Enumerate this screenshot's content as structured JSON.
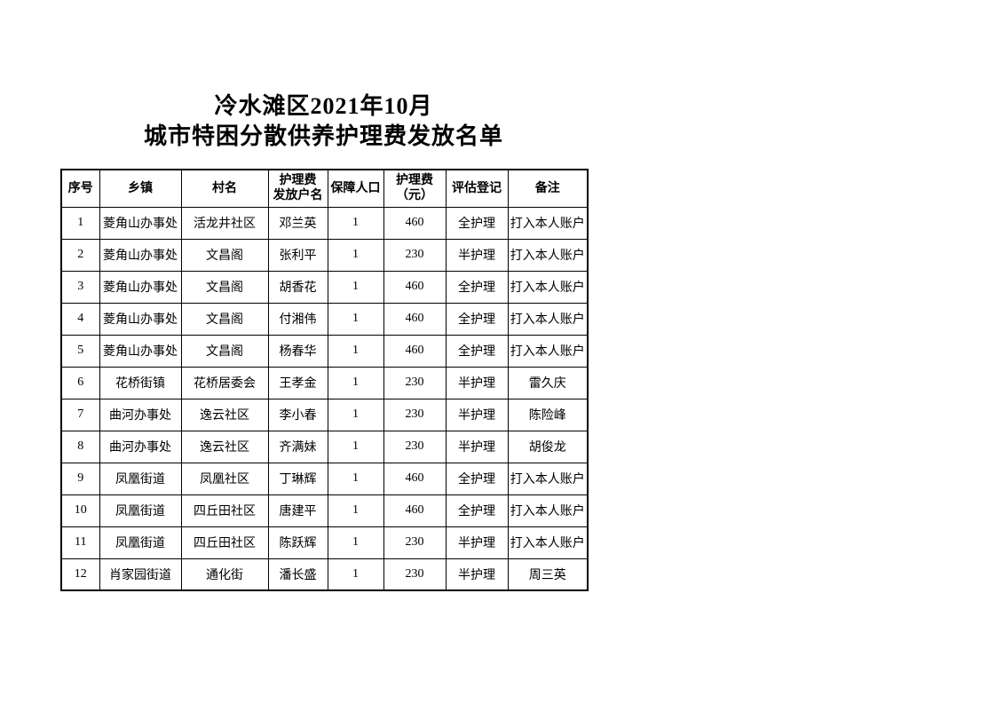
{
  "page": {
    "title_line1": "冷水滩区2021年10月",
    "title_line2": "城市特困分散供养护理费发放名单"
  },
  "table": {
    "headers": [
      "序号",
      "乡镇",
      "村名",
      "护理费\n发放户名",
      "保障人口",
      "护理费\n（元）",
      "评估登记",
      "备注"
    ],
    "column_keys": [
      "index",
      "township",
      "village",
      "payee",
      "population",
      "fee",
      "assessment",
      "remark"
    ],
    "rows": [
      [
        "1",
        "菱角山办事处",
        "活龙井社区",
        "邓兰英",
        "1",
        "460",
        "全护理",
        "打入本人账户"
      ],
      [
        "2",
        "菱角山办事处",
        "文昌阁",
        "张利平",
        "1",
        "230",
        "半护理",
        "打入本人账户"
      ],
      [
        "3",
        "菱角山办事处",
        "文昌阁",
        "胡香花",
        "1",
        "460",
        "全护理",
        "打入本人账户"
      ],
      [
        "4",
        "菱角山办事处",
        "文昌阁",
        "付湘伟",
        "1",
        "460",
        "全护理",
        "打入本人账户"
      ],
      [
        "5",
        "菱角山办事处",
        "文昌阁",
        "杨春华",
        "1",
        "460",
        "全护理",
        "打入本人账户"
      ],
      [
        "6",
        "花桥街镇",
        "花桥居委会",
        "王孝金",
        "1",
        "230",
        "半护理",
        "雷久庆"
      ],
      [
        "7",
        "曲河办事处",
        "逸云社区",
        "李小春",
        "1",
        "230",
        "半护理",
        "陈险峰"
      ],
      [
        "8",
        "曲河办事处",
        "逸云社区",
        "齐满妹",
        "1",
        "230",
        "半护理",
        "胡俊龙"
      ],
      [
        "9",
        "凤凰街道",
        "凤凰社区",
        "丁琳辉",
        "1",
        "460",
        "全护理",
        "打入本人账户"
      ],
      [
        "10",
        "凤凰街道",
        "四丘田社区",
        "唐建平",
        "1",
        "460",
        "全护理",
        "打入本人账户"
      ],
      [
        "11",
        "凤凰街道",
        "四丘田社区",
        "陈跃辉",
        "1",
        "230",
        "半护理",
        "打入本人账户"
      ],
      [
        "12",
        "肖家园街道",
        "通化街",
        "潘长盛",
        "1",
        "230",
        "半护理",
        "周三英"
      ]
    ]
  }
}
